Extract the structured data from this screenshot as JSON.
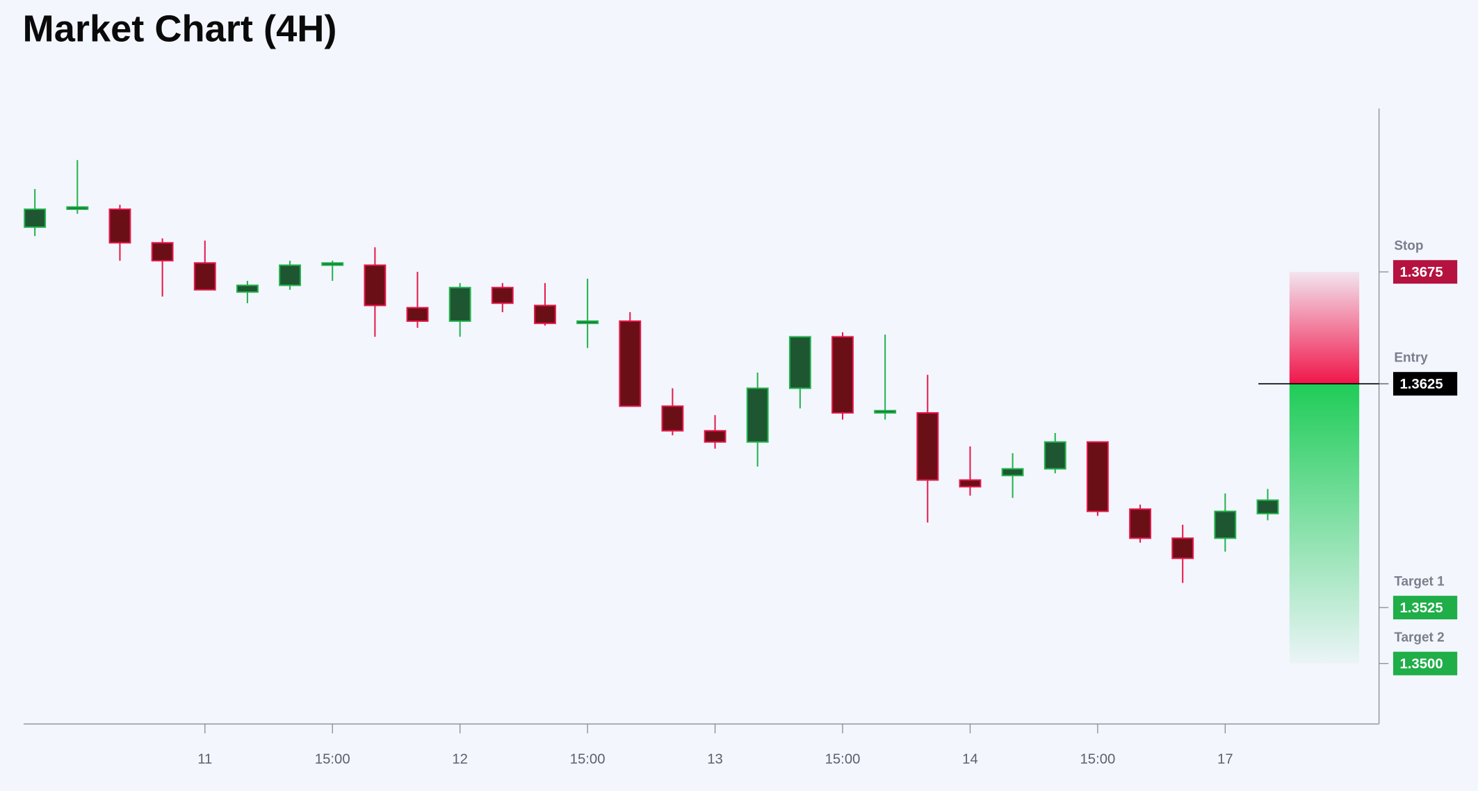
{
  "chart_data": {
    "type": "candlestick",
    "title": "Market Chart (4H)",
    "categories": [
      null,
      null,
      null,
      null,
      "11",
      null,
      null,
      "15:00",
      null,
      null,
      "12",
      null,
      null,
      "15:00",
      null,
      null,
      "13",
      null,
      null,
      "15:00",
      null,
      null,
      "14",
      null,
      null,
      "15:00",
      null,
      null,
      "17",
      null
    ],
    "open": [
      1.3695,
      1.3703,
      1.3703,
      1.3688,
      1.3679,
      1.3666,
      1.3669,
      1.3678,
      1.3678,
      1.3659,
      1.3653,
      1.3668,
      1.366,
      1.3652,
      1.3653,
      1.3615,
      1.3604,
      1.3599,
      1.3623,
      1.3646,
      1.3612,
      1.3612,
      1.3582,
      1.3584,
      1.3587,
      1.3599,
      1.3569,
      1.3556,
      1.3556,
      1.3567
    ],
    "high": [
      1.3712,
      1.3725,
      1.3705,
      1.369,
      1.3689,
      1.3671,
      1.368,
      1.368,
      1.3686,
      1.3675,
      1.367,
      1.367,
      1.367,
      1.3672,
      1.3657,
      1.3623,
      1.3611,
      1.363,
      1.3646,
      1.3648,
      1.3647,
      1.3629,
      1.3597,
      1.3594,
      1.3603,
      1.3599,
      1.3571,
      1.3562,
      1.3576,
      1.3578
    ],
    "low": [
      1.3691,
      1.3701,
      1.368,
      1.3664,
      1.3667,
      1.3661,
      1.3667,
      1.3671,
      1.3646,
      1.365,
      1.3646,
      1.3657,
      1.3651,
      1.3641,
      1.3615,
      1.3602,
      1.3596,
      1.3588,
      1.3614,
      1.3609,
      1.3609,
      1.3563,
      1.3575,
      1.3574,
      1.3585,
      1.3566,
      1.3554,
      1.3536,
      1.355,
      1.3564
    ],
    "close": [
      1.3703,
      1.3704,
      1.3688,
      1.368,
      1.3667,
      1.3669,
      1.3678,
      1.3679,
      1.366,
      1.3653,
      1.3668,
      1.3661,
      1.3652,
      1.3653,
      1.3615,
      1.3604,
      1.3599,
      1.3623,
      1.3646,
      1.3612,
      1.3613,
      1.3582,
      1.3579,
      1.3587,
      1.3599,
      1.3568,
      1.3556,
      1.3547,
      1.3568,
      1.3573
    ],
    "up_color": "#1e5631",
    "up_edge": "#22b34c",
    "down_color": "#6b0f17",
    "down_edge": "#e5194a",
    "ylim": [
      1.3473,
      1.3748
    ],
    "levels": [
      {
        "name": "Stop",
        "value": 1.3675,
        "color": "#b5123f"
      },
      {
        "name": "Entry",
        "value": 1.3625,
        "color": "#000000"
      },
      {
        "name": "Target 1",
        "value": 1.3525,
        "color": "#1fae48"
      },
      {
        "name": "Target 2",
        "value": {
          "value": 1.35,
          "label": "1.3500"
        },
        "color": "#1fae48"
      }
    ]
  }
}
